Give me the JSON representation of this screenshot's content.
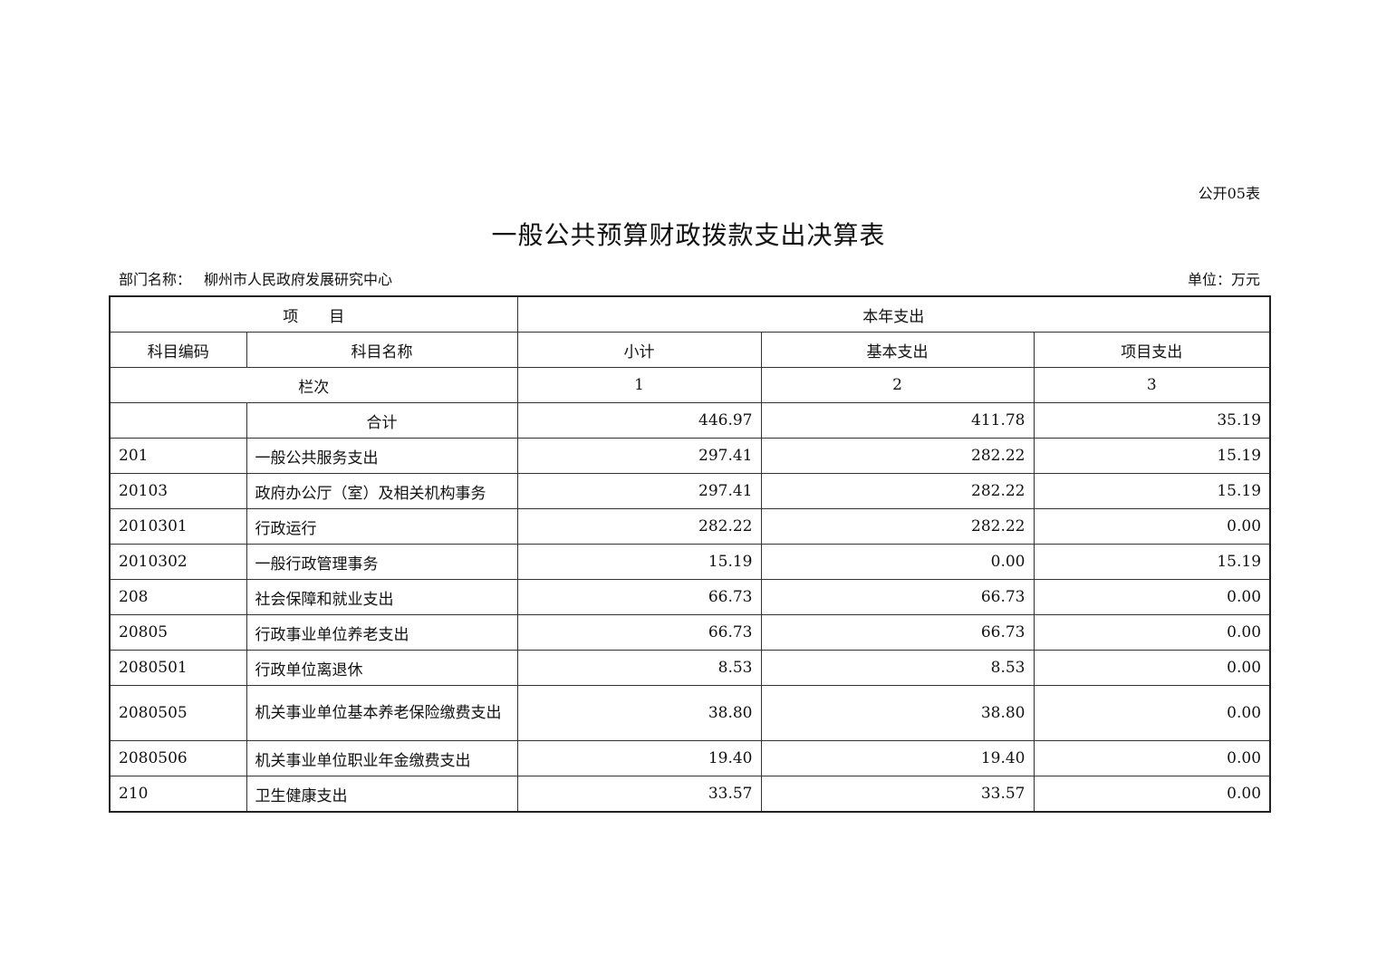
{
  "form_no": "公开05表",
  "title": "一般公共预算财政拨款支出决算表",
  "department_label": "部门名称：",
  "department_name": "柳州市人民政府发展研究中心",
  "unit": "单位：万元",
  "table": {
    "header_item": "项　　目",
    "header_current_year": "本年支出",
    "col_code": "科目编码",
    "col_name": "科目名称",
    "col_subtotal": "小计",
    "col_basic": "基本支出",
    "col_project": "项目支出",
    "index_label": "栏次",
    "index_1": "1",
    "index_2": "2",
    "index_3": "3",
    "total": {
      "code": "",
      "name": "合计",
      "subtotal": "446.97",
      "basic": "411.78",
      "project": "35.19"
    },
    "rows": [
      {
        "code": "201",
        "name": "一般公共服务支出",
        "subtotal": "297.41",
        "basic": "282.22",
        "project": "15.19"
      },
      {
        "code": "20103",
        "name": "政府办公厅（室）及相关机构事务",
        "subtotal": "297.41",
        "basic": "282.22",
        "project": "15.19"
      },
      {
        "code": "2010301",
        "name": "行政运行",
        "subtotal": "282.22",
        "basic": "282.22",
        "project": "0.00"
      },
      {
        "code": "2010302",
        "name": "一般行政管理事务",
        "subtotal": "15.19",
        "basic": "0.00",
        "project": "15.19"
      },
      {
        "code": "208",
        "name": "社会保障和就业支出",
        "subtotal": "66.73",
        "basic": "66.73",
        "project": "0.00"
      },
      {
        "code": "20805",
        "name": "行政事业单位养老支出",
        "subtotal": "66.73",
        "basic": "66.73",
        "project": "0.00"
      },
      {
        "code": "2080501",
        "name": "行政单位离退休",
        "subtotal": "8.53",
        "basic": "8.53",
        "project": "0.00"
      },
      {
        "code": "2080505",
        "name": "机关事业单位基本养老保险缴费支出",
        "subtotal": "38.80",
        "basic": "38.80",
        "project": "0.00"
      },
      {
        "code": "2080506",
        "name": "机关事业单位职业年金缴费支出",
        "subtotal": "19.40",
        "basic": "19.40",
        "project": "0.00"
      },
      {
        "code": "210",
        "name": "卫生健康支出",
        "subtotal": "33.57",
        "basic": "33.57",
        "project": "0.00"
      }
    ]
  }
}
